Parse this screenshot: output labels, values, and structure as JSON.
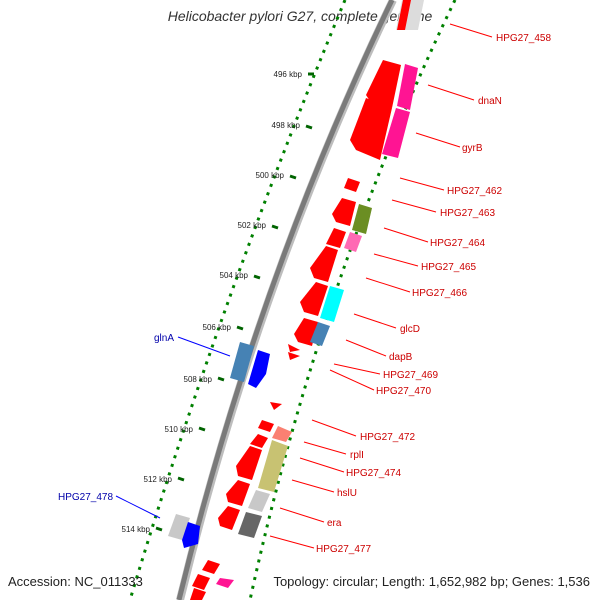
{
  "title": "Helicobacter pylori G27, complete genome",
  "accession": "Accession: NC_011333",
  "topology": "Topology: circular; Length: 1,652,982 bp; Genes: 1,536",
  "colors": {
    "backbone": "#7f7f7f",
    "tick": "#006400",
    "dots": "#008000",
    "label_red": "#cc0000",
    "label_blue": "#0000aa",
    "gene_red": "#ff0000",
    "magenta": "#ff1493",
    "olive": "#6b8e23",
    "cyan": "#00ffff",
    "steel": "#4682b4",
    "khaki": "#c8c272",
    "pink": "#fa8072",
    "gray": "#9a9a9a",
    "lightgray": "#c8c8c8",
    "darkgray": "#666666",
    "blue": "#0000ff"
  },
  "scale_ticks": [
    "496 kbp",
    "498 kbp",
    "500 kbp",
    "502 kbp",
    "504 kbp",
    "506 kbp",
    "508 kbp",
    "510 kbp",
    "512 kbp",
    "514 kbp"
  ],
  "gene_labels": [
    {
      "text": "HPG27_458",
      "color": "red"
    },
    {
      "text": "dnaN",
      "color": "red"
    },
    {
      "text": "gyrB",
      "color": "red"
    },
    {
      "text": "HPG27_462",
      "color": "red"
    },
    {
      "text": "HPG27_463",
      "color": "red"
    },
    {
      "text": "HPG27_464",
      "color": "red"
    },
    {
      "text": "HPG27_465",
      "color": "red"
    },
    {
      "text": "HPG27_466",
      "color": "red"
    },
    {
      "text": "glcD",
      "color": "red"
    },
    {
      "text": "dapB",
      "color": "red"
    },
    {
      "text": "HPG27_469",
      "color": "red"
    },
    {
      "text": "HPG27_470",
      "color": "red"
    },
    {
      "text": "HPG27_472",
      "color": "red"
    },
    {
      "text": "rplI",
      "color": "red"
    },
    {
      "text": "HPG27_474",
      "color": "red"
    },
    {
      "text": "hslU",
      "color": "red"
    },
    {
      "text": "era",
      "color": "red"
    },
    {
      "text": "HPG27_477",
      "color": "red"
    },
    {
      "text": "glnA",
      "color": "blue"
    },
    {
      "text": "HPG27_478",
      "color": "blue"
    }
  ]
}
